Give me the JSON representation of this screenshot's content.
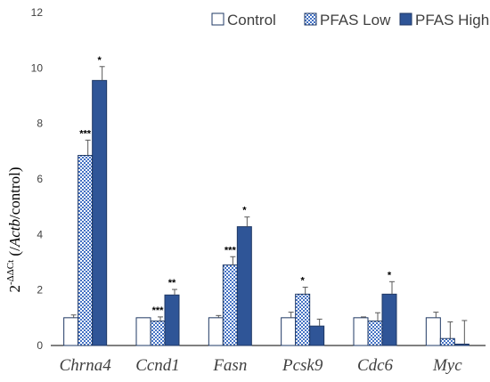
{
  "chart_data": {
    "type": "bar",
    "ylabel": {
      "base": "2",
      "superscript": "-ΔΔCt",
      "open": " (/",
      "ref_gene": "Actb",
      "close": "/control)"
    },
    "ylim": [
      0,
      12
    ],
    "yticks": [
      "0",
      "2",
      "4",
      "6",
      "8",
      "10",
      "12"
    ],
    "grid": false,
    "legend_position": "top-right",
    "categories": [
      "Chrna4",
      "Ccnd1",
      "Fasn",
      "Pcsk9",
      "Cdc6",
      "Myc"
    ],
    "series": [
      {
        "name": "Control",
        "pattern": "hollow",
        "values": [
          1.0,
          1.0,
          1.0,
          1.0,
          1.0,
          1.0
        ],
        "errors": [
          0.1,
          0.0,
          0.08,
          0.2,
          0.03,
          0.2
        ],
        "significance": [
          "",
          "",
          "",
          "",
          "",
          ""
        ]
      },
      {
        "name": "PFAS Low",
        "pattern": "checkered",
        "values": [
          6.85,
          0.88,
          2.9,
          1.85,
          0.88,
          0.25
        ],
        "errors": [
          0.55,
          0.15,
          0.3,
          0.25,
          0.3,
          0.6
        ],
        "significance": [
          "***",
          "***",
          "***",
          "*",
          "",
          ""
        ]
      },
      {
        "name": "PFAS High",
        "pattern": "solid",
        "values": [
          9.55,
          1.82,
          4.28,
          0.7,
          1.85,
          0.05
        ],
        "errors": [
          0.5,
          0.2,
          0.35,
          0.25,
          0.45,
          0.85
        ],
        "significance": [
          "*",
          "**",
          "*",
          "",
          "*",
          ""
        ]
      }
    ],
    "colors": {
      "control_fill": "#ffffff",
      "outline": "#1f3864",
      "pattern": "#4472c4",
      "solid": "#2f5597",
      "axis": "#000000"
    }
  }
}
